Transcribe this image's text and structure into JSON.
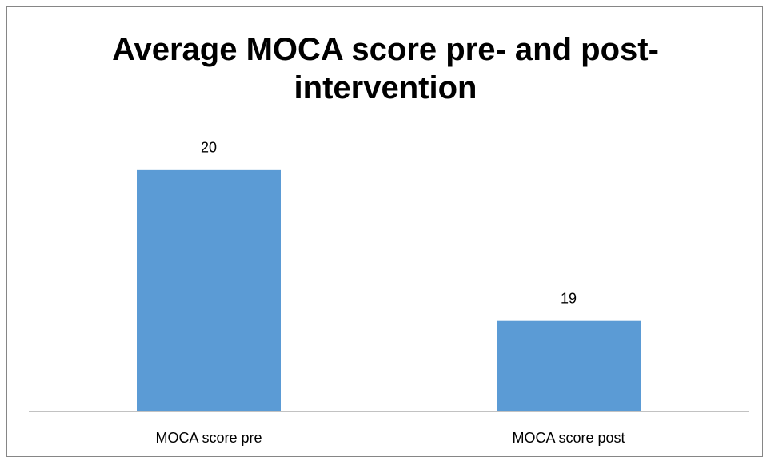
{
  "chart_data": {
    "type": "bar",
    "title": "Average MOCA score pre- and post-intervention",
    "categories": [
      "MOCA score pre",
      "MOCA score post"
    ],
    "values": [
      20,
      19
    ],
    "color": "#5b9bd5",
    "ylim": [
      18.4,
      21
    ]
  }
}
